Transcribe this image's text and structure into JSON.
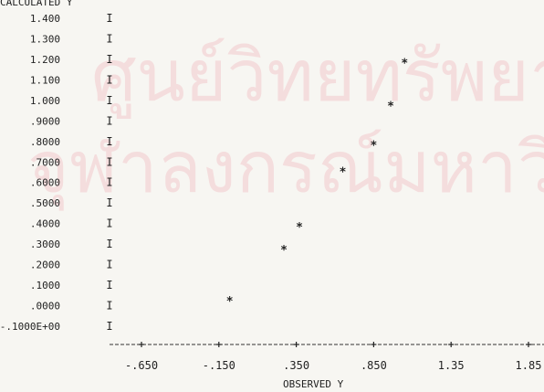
{
  "watermark": {
    "line1": "ศูนย์วิทยทรัพยา",
    "line2": "จุฬาลงกรณ์มหาวิทย"
  },
  "chart_data": {
    "type": "scatter",
    "ylabel": "CALCULATED Y",
    "xlabel": "OBSERVED Y",
    "x_tick_labels": [
      "-.650",
      "-.150",
      ".350",
      ".850",
      "1.35",
      "1.85"
    ],
    "x_tick_values": [
      -0.65,
      -0.15,
      0.35,
      0.85,
      1.35,
      1.85
    ],
    "y_tick_labels": [
      "1.400",
      "1.300",
      "1.200",
      "1.100",
      "1.000",
      ".9000",
      ".8000",
      ".7000",
      ".6000",
      ".5000",
      ".4000",
      ".3000",
      ".2000",
      ".1000",
      ".0000",
      "-.1000E+00"
    ],
    "y_tick_values": [
      1.4,
      1.3,
      1.2,
      1.1,
      1.0,
      0.9,
      0.8,
      0.7,
      0.6,
      0.5,
      0.4,
      0.3,
      0.2,
      0.1,
      0.0,
      -0.1
    ],
    "xlim": [
      -1.15,
      2.25
    ],
    "ylim": [
      -0.1,
      1.4
    ],
    "axis_marker": "I",
    "point_marker": "*",
    "points": [
      {
        "x": -0.08,
        "y": 0.02
      },
      {
        "x": 0.27,
        "y": 0.27
      },
      {
        "x": 0.37,
        "y": 0.38
      },
      {
        "x": 0.65,
        "y": 0.65
      },
      {
        "x": 0.85,
        "y": 0.78
      },
      {
        "x": 0.96,
        "y": 0.97
      },
      {
        "x": 1.05,
        "y": 1.18
      }
    ],
    "grid": false,
    "legend": "none"
  }
}
